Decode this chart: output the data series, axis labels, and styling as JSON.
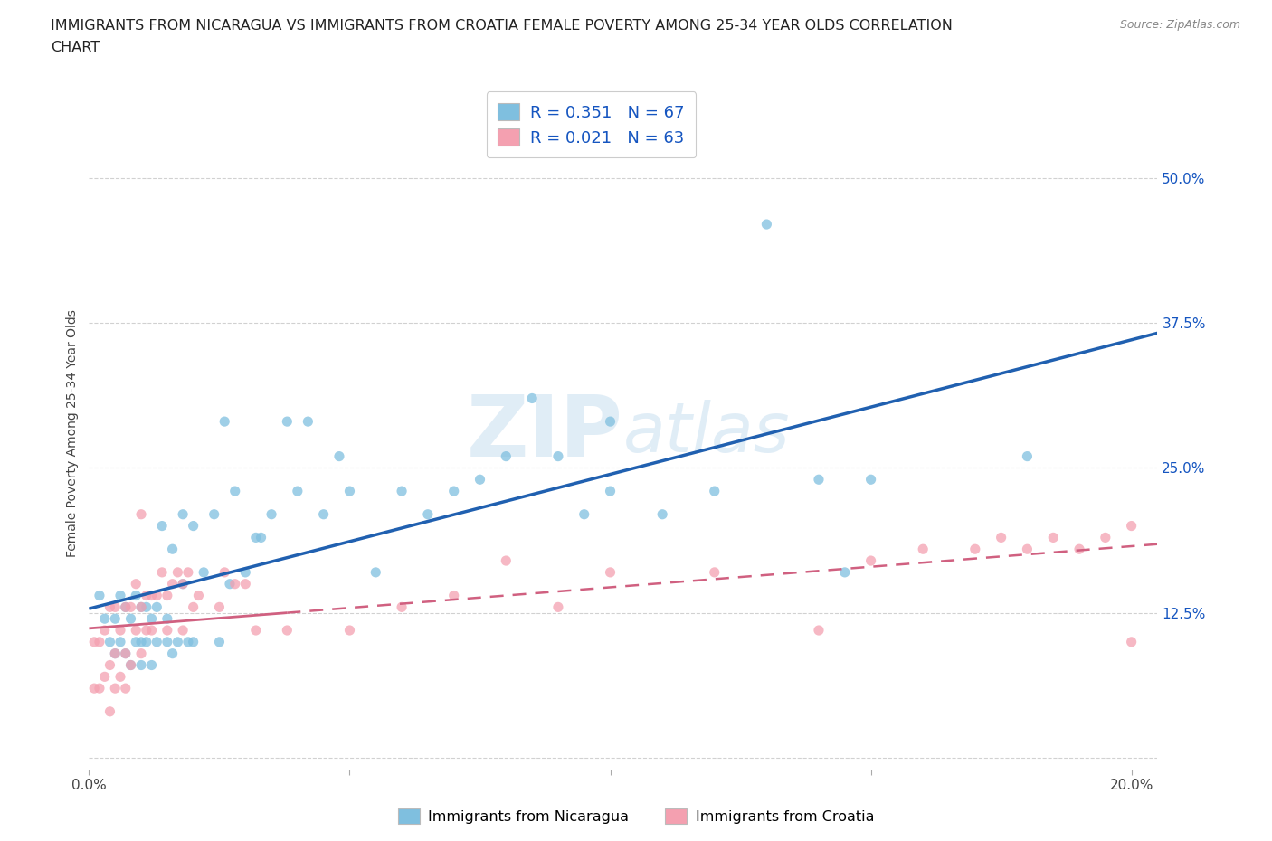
{
  "title_line1": "IMMIGRANTS FROM NICARAGUA VS IMMIGRANTS FROM CROATIA FEMALE POVERTY AMONG 25-34 YEAR OLDS CORRELATION",
  "title_line2": "CHART",
  "source": "Source: ZipAtlas.com",
  "ylabel": "Female Poverty Among 25-34 Year Olds",
  "xlim": [
    0.0,
    0.205
  ],
  "ylim": [
    -0.01,
    0.57
  ],
  "yticks": [
    0.0,
    0.125,
    0.25,
    0.375,
    0.5
  ],
  "yticklabels": [
    "",
    "12.5%",
    "25.0%",
    "37.5%",
    "50.0%"
  ],
  "xticks": [
    0.0,
    0.05,
    0.1,
    0.15,
    0.2
  ],
  "xticklabels": [
    "0.0%",
    "",
    "",
    "",
    "20.0%"
  ],
  "nicaragua_color": "#7fbfdf",
  "croatia_color": "#f4a0b0",
  "nicaragua_line_color": "#2060b0",
  "croatia_line_color": "#d06080",
  "R_nicaragua": 0.351,
  "N_nicaragua": 67,
  "R_croatia": 0.021,
  "N_croatia": 63,
  "nicaragua_scatter_x": [
    0.002,
    0.003,
    0.004,
    0.005,
    0.005,
    0.006,
    0.006,
    0.007,
    0.007,
    0.008,
    0.008,
    0.009,
    0.009,
    0.01,
    0.01,
    0.01,
    0.011,
    0.011,
    0.012,
    0.012,
    0.013,
    0.013,
    0.014,
    0.015,
    0.015,
    0.016,
    0.016,
    0.017,
    0.018,
    0.018,
    0.019,
    0.02,
    0.02,
    0.022,
    0.024,
    0.025,
    0.026,
    0.027,
    0.028,
    0.03,
    0.032,
    0.033,
    0.035,
    0.038,
    0.04,
    0.042,
    0.045,
    0.048,
    0.05,
    0.055,
    0.06,
    0.065,
    0.07,
    0.075,
    0.08,
    0.085,
    0.09,
    0.095,
    0.1,
    0.1,
    0.11,
    0.12,
    0.13,
    0.14,
    0.145,
    0.15,
    0.18
  ],
  "nicaragua_scatter_y": [
    0.14,
    0.12,
    0.1,
    0.09,
    0.12,
    0.1,
    0.14,
    0.09,
    0.13,
    0.08,
    0.12,
    0.1,
    0.14,
    0.08,
    0.1,
    0.13,
    0.1,
    0.13,
    0.08,
    0.12,
    0.1,
    0.13,
    0.2,
    0.1,
    0.12,
    0.09,
    0.18,
    0.1,
    0.15,
    0.21,
    0.1,
    0.1,
    0.2,
    0.16,
    0.21,
    0.1,
    0.29,
    0.15,
    0.23,
    0.16,
    0.19,
    0.19,
    0.21,
    0.29,
    0.23,
    0.29,
    0.21,
    0.26,
    0.23,
    0.16,
    0.23,
    0.21,
    0.23,
    0.24,
    0.26,
    0.31,
    0.26,
    0.21,
    0.23,
    0.29,
    0.21,
    0.23,
    0.46,
    0.24,
    0.16,
    0.24,
    0.26
  ],
  "croatia_scatter_x": [
    0.001,
    0.001,
    0.002,
    0.002,
    0.003,
    0.003,
    0.004,
    0.004,
    0.004,
    0.005,
    0.005,
    0.005,
    0.006,
    0.006,
    0.007,
    0.007,
    0.007,
    0.008,
    0.008,
    0.009,
    0.009,
    0.01,
    0.01,
    0.01,
    0.011,
    0.011,
    0.012,
    0.012,
    0.013,
    0.014,
    0.015,
    0.015,
    0.016,
    0.017,
    0.018,
    0.018,
    0.019,
    0.02,
    0.021,
    0.025,
    0.026,
    0.028,
    0.03,
    0.032,
    0.038,
    0.05,
    0.06,
    0.07,
    0.08,
    0.09,
    0.1,
    0.12,
    0.14,
    0.15,
    0.16,
    0.17,
    0.175,
    0.18,
    0.185,
    0.19,
    0.195,
    0.2,
    0.2
  ],
  "croatia_scatter_y": [
    0.06,
    0.1,
    0.06,
    0.1,
    0.07,
    0.11,
    0.04,
    0.08,
    0.13,
    0.06,
    0.09,
    0.13,
    0.07,
    0.11,
    0.06,
    0.09,
    0.13,
    0.08,
    0.13,
    0.11,
    0.15,
    0.09,
    0.13,
    0.21,
    0.11,
    0.14,
    0.11,
    0.14,
    0.14,
    0.16,
    0.11,
    0.14,
    0.15,
    0.16,
    0.11,
    0.15,
    0.16,
    0.13,
    0.14,
    0.13,
    0.16,
    0.15,
    0.15,
    0.11,
    0.11,
    0.11,
    0.13,
    0.14,
    0.17,
    0.13,
    0.16,
    0.16,
    0.11,
    0.17,
    0.18,
    0.18,
    0.19,
    0.18,
    0.19,
    0.18,
    0.19,
    0.1,
    0.2
  ],
  "bg_color": "#ffffff",
  "grid_color": "#cccccc",
  "title_fontsize": 11.5,
  "axis_fontsize": 10,
  "tick_fontsize": 11,
  "legend_label_color": "#1555c0",
  "watermark_color": "#c8dff0",
  "watermark_alpha": 0.55
}
